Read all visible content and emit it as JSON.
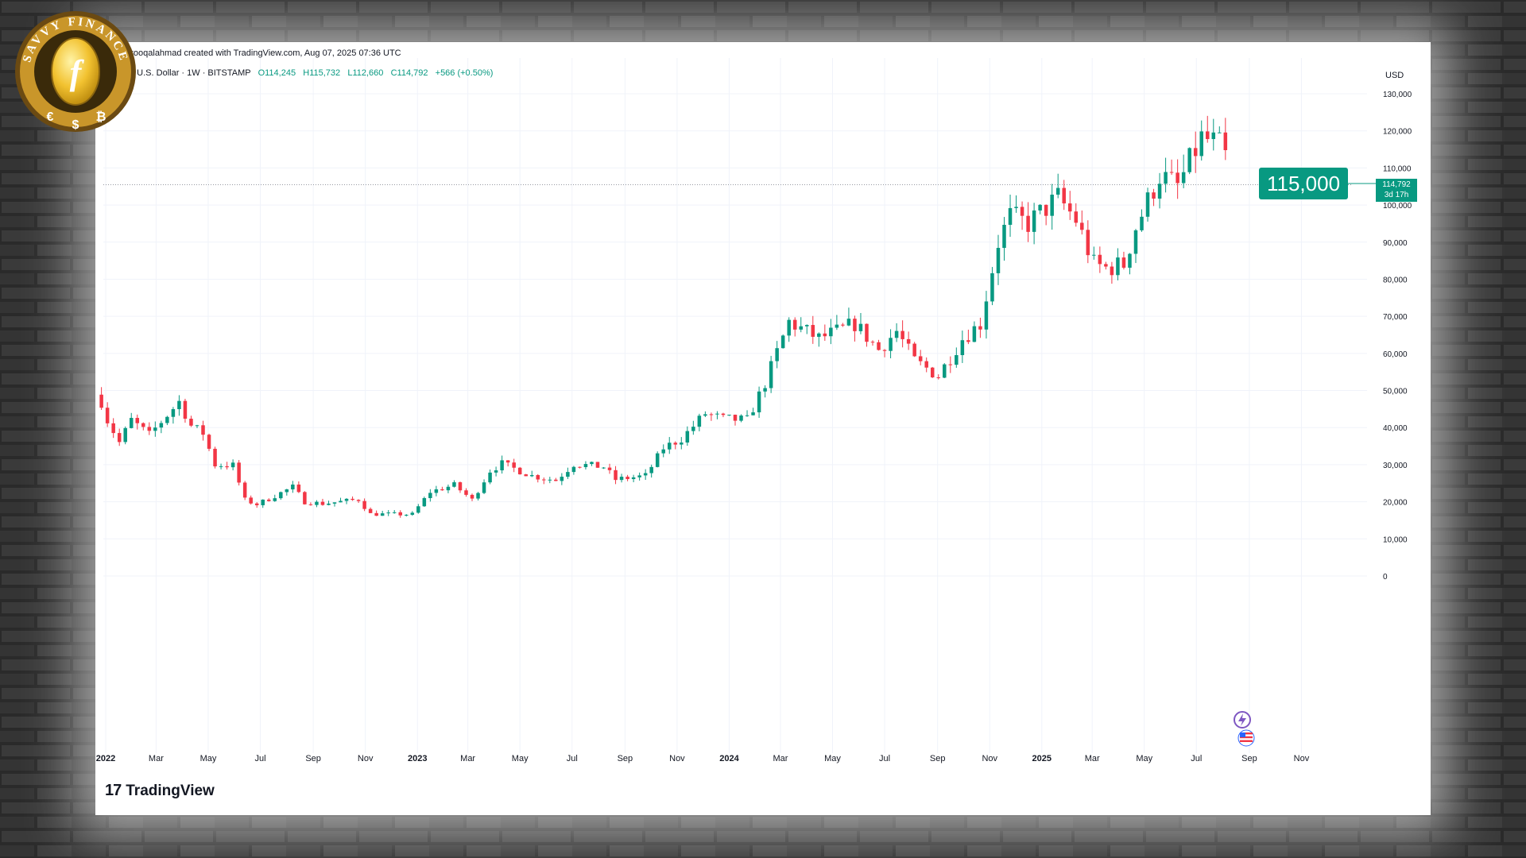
{
  "header": {
    "author_line": "umarfarooqalahmad created with TradingView.com, Aug 07, 2025 07:36 UTC",
    "symbol_line": "Bitcoin / U.S. Dollar · 1W · BITSTAMP",
    "open": "O114,245",
    "high": "H115,732",
    "low": "L112,660",
    "close": "C114,792",
    "change": "+566 (+0.50%)"
  },
  "currency": "USD",
  "price_badge": "115,000",
  "last_price_tag": {
    "price": "114,792",
    "countdown": "3d 17h"
  },
  "brand": {
    "name": "TradingView",
    "mark": "17"
  },
  "logo": {
    "text": "SAVVY FINANCE",
    "symbols": [
      "€",
      "$",
      "₿"
    ],
    "coin_letter": "f"
  },
  "colors": {
    "up": "#089981",
    "down": "#f23645",
    "grid": "#f0f3fa",
    "badge": "#089981"
  },
  "icons": [
    "lightning-event-icon",
    "us-flag-event-icon"
  ],
  "chart_data": {
    "type": "candlestick",
    "title": "Bitcoin / U.S. Dollar · 1W · BITSTAMP",
    "ylabel": "USD",
    "ylim": [
      0,
      135000
    ],
    "xlim": [
      "2022-01-01",
      "2025-12-05"
    ],
    "y_ticks": [
      0,
      10000,
      20000,
      30000,
      40000,
      50000,
      60000,
      70000,
      80000,
      90000,
      100000,
      110000,
      120000,
      130000
    ],
    "y_tick_labels": [
      "0",
      "10,000",
      "20,000",
      "30,000",
      "40,000",
      "50,000",
      "60,000",
      "70,000",
      "80,000",
      "90,000",
      "100,000",
      "110,000",
      "120,000",
      "130,000"
    ],
    "x_ticks": [
      {
        "date": "2022-01-01",
        "label": "2022",
        "bold": true
      },
      {
        "date": "2022-03-01",
        "label": "Mar"
      },
      {
        "date": "2022-05-01",
        "label": "May"
      },
      {
        "date": "2022-07-01",
        "label": "Jul"
      },
      {
        "date": "2022-09-01",
        "label": "Sep"
      },
      {
        "date": "2022-11-01",
        "label": "Nov"
      },
      {
        "date": "2023-01-01",
        "label": "2023",
        "bold": true
      },
      {
        "date": "2023-03-01",
        "label": "Mar"
      },
      {
        "date": "2023-05-01",
        "label": "May"
      },
      {
        "date": "2023-07-01",
        "label": "Jul"
      },
      {
        "date": "2023-09-01",
        "label": "Sep"
      },
      {
        "date": "2023-11-01",
        "label": "Nov"
      },
      {
        "date": "2024-01-01",
        "label": "2024",
        "bold": true
      },
      {
        "date": "2024-03-01",
        "label": "Mar"
      },
      {
        "date": "2024-05-01",
        "label": "May"
      },
      {
        "date": "2024-07-01",
        "label": "Jul"
      },
      {
        "date": "2024-09-01",
        "label": "Sep"
      },
      {
        "date": "2024-11-01",
        "label": "Nov"
      },
      {
        "date": "2025-01-01",
        "label": "2025",
        "bold": true
      },
      {
        "date": "2025-03-01",
        "label": "Mar"
      },
      {
        "date": "2025-05-01",
        "label": "May"
      },
      {
        "date": "2025-07-01",
        "label": "Jul"
      },
      {
        "date": "2025-09-01",
        "label": "Sep"
      },
      {
        "date": "2025-11-01",
        "label": "Nov"
      }
    ],
    "last_price": 114792,
    "price_line": 115000,
    "anchors": [
      [
        "2021-12-27",
        47000
      ],
      [
        "2022-01-03",
        42000
      ],
      [
        "2022-01-17",
        36000
      ],
      [
        "2022-01-31",
        42000
      ],
      [
        "2022-02-21",
        38000
      ],
      [
        "2022-03-28",
        47000
      ],
      [
        "2022-04-11",
        40500
      ],
      [
        "2022-04-25",
        38500
      ],
      [
        "2022-05-09",
        30000
      ],
      [
        "2022-05-30",
        29800
      ],
      [
        "2022-06-13",
        20500
      ],
      [
        "2022-06-27",
        19300
      ],
      [
        "2022-07-11",
        20800
      ],
      [
        "2022-08-08",
        24000
      ],
      [
        "2022-08-22",
        20000
      ],
      [
        "2022-09-12",
        19500
      ],
      [
        "2022-10-24",
        20600
      ],
      [
        "2022-11-07",
        16700
      ],
      [
        "2022-12-26",
        16600
      ],
      [
        "2023-01-16",
        22700
      ],
      [
        "2023-02-13",
        24500
      ],
      [
        "2023-03-06",
        20500
      ],
      [
        "2023-03-27",
        28400
      ],
      [
        "2023-04-10",
        30300
      ],
      [
        "2023-05-15",
        27000
      ],
      [
        "2023-06-12",
        25800
      ],
      [
        "2023-07-03",
        30200
      ],
      [
        "2023-08-07",
        29400
      ],
      [
        "2023-08-21",
        26000
      ],
      [
        "2023-09-25",
        27000
      ],
      [
        "2023-10-16",
        34500
      ],
      [
        "2023-11-06",
        37000
      ],
      [
        "2023-12-04",
        43800
      ],
      [
        "2023-12-25",
        42300
      ],
      [
        "2024-01-22",
        42000
      ],
      [
        "2024-02-12",
        52000
      ],
      [
        "2024-03-11",
        68500
      ],
      [
        "2024-04-15",
        64000
      ],
      [
        "2024-05-13",
        66500
      ],
      [
        "2024-05-27",
        68000
      ],
      [
        "2024-06-24",
        61000
      ],
      [
        "2024-07-15",
        66000
      ],
      [
        "2024-08-05",
        58000
      ],
      [
        "2024-09-02",
        54000
      ],
      [
        "2024-09-30",
        64000
      ],
      [
        "2024-10-21",
        68000
      ],
      [
        "2024-11-11",
        90000
      ],
      [
        "2024-11-25",
        97000
      ],
      [
        "2024-12-16",
        95000
      ],
      [
        "2025-01-20",
        102000
      ],
      [
        "2025-02-10",
        96000
      ],
      [
        "2025-03-03",
        84000
      ],
      [
        "2025-03-17",
        83000
      ],
      [
        "2025-04-07",
        84000
      ],
      [
        "2025-04-21",
        94000
      ],
      [
        "2025-05-19",
        108000
      ],
      [
        "2025-06-09",
        105000
      ],
      [
        "2025-07-07",
        118000
      ],
      [
        "2025-07-21",
        117000
      ],
      [
        "2025-08-04",
        114792
      ]
    ]
  }
}
